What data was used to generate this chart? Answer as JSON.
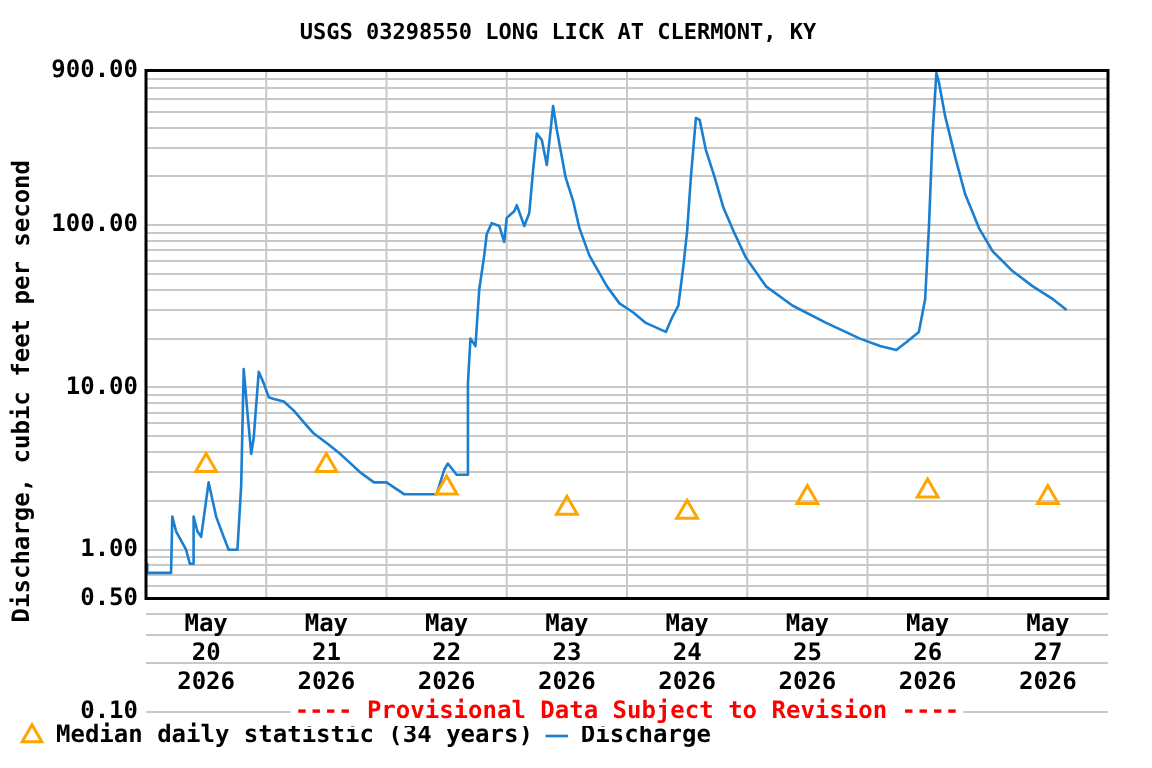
{
  "chart_data": {
    "type": "line",
    "title": "USGS 03298550 LONG LICK AT CLERMONT, KY",
    "ylabel": "Discharge, cubic feet per second",
    "annotations": [
      "---- Provisional Data Subject to Revision ----"
    ],
    "log": "y",
    "grid": true,
    "legend": "bottom",
    "xlim": [
      "2026-05-20T00:00",
      "2026-05-28T00:00"
    ],
    "xticks": [
      {
        "value": "2026-05-20T00:00",
        "label": null
      },
      {
        "value": "2026-05-20T12:00",
        "label": "May 20 2026"
      },
      {
        "value": "2026-05-21T00:00",
        "label": null
      },
      {
        "value": "2026-05-21T12:00",
        "label": "May 21 2026"
      },
      {
        "value": "2026-05-22T00:00",
        "label": null
      },
      {
        "value": "2026-05-22T12:00",
        "label": "May 22 2026"
      },
      {
        "value": "2026-05-23T00:00",
        "label": null
      },
      {
        "value": "2026-05-23T12:00",
        "label": "May 23 2026"
      },
      {
        "value": "2026-05-24T00:00",
        "label": null
      },
      {
        "value": "2026-05-24T12:00",
        "label": "May 24 2026"
      },
      {
        "value": "2026-05-25T00:00",
        "label": null
      },
      {
        "value": "2026-05-25T12:00",
        "label": "May 25 2026"
      },
      {
        "value": "2026-05-26T00:00",
        "label": null
      },
      {
        "value": "2026-05-26T12:00",
        "label": "May 26 2026"
      },
      {
        "value": "2026-05-27T00:00",
        "label": null
      },
      {
        "value": "2026-05-27T12:00",
        "label": "May 27 2026"
      },
      {
        "value": "2026-05-28T00:00",
        "label": null
      }
    ],
    "ylim": [
      0.1,
      900
    ],
    "yticks": [
      {
        "value": 0.1,
        "label": "0.10"
      },
      {
        "value": 0.2,
        "label": null
      },
      {
        "value": 0.3,
        "label": null
      },
      {
        "value": 0.4,
        "label": null
      },
      {
        "value": 0.5,
        "label": "0.50"
      },
      {
        "value": 0.6,
        "label": null
      },
      {
        "value": 0.7,
        "label": null
      },
      {
        "value": 0.8,
        "label": null
      },
      {
        "value": 0.9,
        "label": null
      },
      {
        "value": 1,
        "label": "1.00"
      },
      {
        "value": 2,
        "label": null
      },
      {
        "value": 3,
        "label": null
      },
      {
        "value": 4,
        "label": null
      },
      {
        "value": 5,
        "label": null
      },
      {
        "value": 6,
        "label": null
      },
      {
        "value": 7,
        "label": null
      },
      {
        "value": 8,
        "label": null
      },
      {
        "value": 9,
        "label": null
      },
      {
        "value": 10,
        "label": "10.00"
      },
      {
        "value": 20,
        "label": null
      },
      {
        "value": 30,
        "label": null
      },
      {
        "value": 40,
        "label": null
      },
      {
        "value": 50,
        "label": null
      },
      {
        "value": 60,
        "label": null
      },
      {
        "value": 70,
        "label": null
      },
      {
        "value": 80,
        "label": null
      },
      {
        "value": 90,
        "label": null
      },
      {
        "value": 100,
        "label": "100.00"
      },
      {
        "value": 200,
        "label": null
      },
      {
        "value": 300,
        "label": null
      },
      {
        "value": 400,
        "label": null
      },
      {
        "value": 500,
        "label": null
      },
      {
        "value": 600,
        "label": null
      },
      {
        "value": 700,
        "label": null
      },
      {
        "value": 800,
        "label": null
      },
      {
        "value": 900,
        "label": "900.00"
      }
    ],
    "series": [
      {
        "name": "Median daily statistic (34 years)",
        "type": "scatter",
        "marker": "triangle",
        "color": "#ffa500",
        "x": [
          "2026-05-20T12:00",
          "2026-05-21T12:00",
          "2026-05-22T12:00",
          "2026-05-23T12:00",
          "2026-05-24T12:00",
          "2026-05-25T12:00",
          "2026-05-26T12:00",
          "2026-05-27T12:00"
        ],
        "values": [
          3.3,
          3.3,
          2.4,
          1.8,
          1.7,
          2.1,
          2.3,
          2.1
        ]
      },
      {
        "name": "Discharge",
        "type": "line",
        "marker": "none",
        "color": "#1a7fd0",
        "x": [
          "2026-05-20T00:00",
          "2026-05-20T00:15",
          "2026-05-20T05:00",
          "2026-05-20T05:15",
          "2026-05-20T06:00",
          "2026-05-20T08:00",
          "2026-05-20T08:45",
          "2026-05-20T09:15",
          "2026-05-20T09:30",
          "2026-05-20T10:15",
          "2026-05-20T11:00",
          "2026-05-20T12:30",
          "2026-05-20T14:00",
          "2026-05-20T15:30",
          "2026-05-20T16:30",
          "2026-05-20T18:15",
          "2026-05-20T19:00",
          "2026-05-20T19:30",
          "2026-05-20T20:15",
          "2026-05-20T21:00",
          "2026-05-20T21:30",
          "2026-05-20T22:30",
          "2026-05-20T23:30",
          "2026-05-21T00:30",
          "2026-05-21T01:30",
          "2026-05-21T03:30",
          "2026-05-21T05:30",
          "2026-05-21T07:30",
          "2026-05-21T09:30",
          "2026-05-21T12:15",
          "2026-05-21T14:45",
          "2026-05-21T18:45",
          "2026-05-21T21:30",
          "2026-05-22T00:00",
          "2026-05-22T03:30",
          "2026-05-22T10:00",
          "2026-05-22T11:30",
          "2026-05-22T12:15",
          "2026-05-22T14:00",
          "2026-05-22T16:00",
          "2026-05-22T16:15",
          "2026-05-22T16:45",
          "2026-05-22T17:45",
          "2026-05-22T18:30",
          "2026-05-22T19:30",
          "2026-05-22T20:00",
          "2026-05-22T21:00",
          "2026-05-22T22:30",
          "2026-05-22T23:30",
          "2026-05-23T00:00",
          "2026-05-23T01:30",
          "2026-05-23T02:00",
          "2026-05-23T03:30",
          "2026-05-23T04:30",
          "2026-05-23T05:15",
          "2026-05-23T06:00",
          "2026-05-23T07:00",
          "2026-05-23T08:00",
          "2026-05-23T08:45",
          "2026-05-23T09:15",
          "2026-05-23T10:00",
          "2026-05-23T11:45",
          "2026-05-23T13:15",
          "2026-05-23T14:30",
          "2026-05-23T16:30",
          "2026-05-23T20:00",
          "2026-05-23T22:30",
          "2026-05-24T01:15",
          "2026-05-24T03:45",
          "2026-05-24T07:45",
          "2026-05-24T09:00",
          "2026-05-24T10:15",
          "2026-05-24T11:15",
          "2026-05-24T12:00",
          "2026-05-24T12:45",
          "2026-05-24T13:45",
          "2026-05-24T14:30",
          "2026-05-24T15:45",
          "2026-05-24T17:30",
          "2026-05-24T19:15",
          "2026-05-24T21:15",
          "2026-05-24T23:45",
          "2026-05-25T03:45",
          "2026-05-25T09:00",
          "2026-05-25T15:45",
          "2026-05-25T22:30",
          "2026-05-26T02:30",
          "2026-05-26T05:45",
          "2026-05-26T07:45",
          "2026-05-26T10:15",
          "2026-05-26T11:30",
          "2026-05-26T12:15",
          "2026-05-26T13:00",
          "2026-05-26T13:45",
          "2026-05-26T14:15",
          "2026-05-26T15:30",
          "2026-05-26T17:30",
          "2026-05-26T19:30",
          "2026-05-26T22:15",
          "2026-05-27T01:00",
          "2026-05-27T05:00",
          "2026-05-27T09:00",
          "2026-05-27T13:00",
          "2026-05-27T15:45"
        ],
        "values": [
          0.82,
          0.72,
          0.72,
          1.6,
          1.3,
          1.0,
          0.82,
          0.82,
          1.6,
          1.3,
          1.2,
          2.6,
          1.6,
          1.2,
          1.0,
          1.0,
          2.5,
          13,
          7,
          3.9,
          4.9,
          12.5,
          10.6,
          8.7,
          8.5,
          8.2,
          7.2,
          6.1,
          5.2,
          4.5,
          3.9,
          3.0,
          2.6,
          2.6,
          2.2,
          2.2,
          3.1,
          3.4,
          2.9,
          2.9,
          10.5,
          20,
          18,
          40,
          65,
          88,
          103,
          99,
          79,
          111,
          122,
          133,
          99,
          119,
          217,
          367,
          335,
          235,
          386,
          543,
          386,
          197,
          141,
          96,
          65,
          42,
          33,
          29,
          25,
          22,
          27,
          32,
          56,
          92,
          197,
          458,
          446,
          290,
          197,
          128,
          92,
          63,
          42,
          32,
          25,
          20,
          18,
          17,
          19,
          22,
          35,
          96,
          367,
          871,
          760,
          470,
          263,
          155,
          96,
          69,
          52,
          42,
          35,
          30
        ]
      }
    ]
  }
}
